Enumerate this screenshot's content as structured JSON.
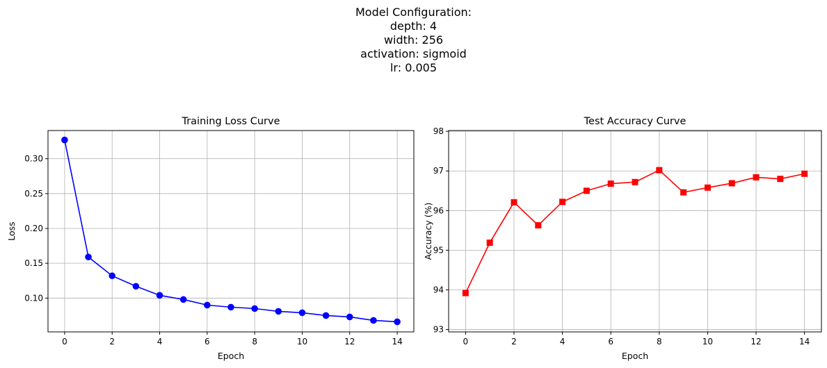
{
  "suptitle": {
    "lines": [
      "Model Configuration:",
      "depth: 4",
      "width: 256",
      "activation: sigmoid",
      "lr: 0.005"
    ]
  },
  "chart_data": [
    {
      "type": "line",
      "title": "Training Loss Curve",
      "xlabel": "Epoch",
      "ylabel": "Loss",
      "x": [
        0,
        1,
        2,
        3,
        4,
        5,
        6,
        7,
        8,
        9,
        10,
        11,
        12,
        13,
        14
      ],
      "xlim": [
        -0.7,
        14.7
      ],
      "ylim": [
        0.0515,
        0.3405
      ],
      "xticks": [
        0,
        2,
        4,
        6,
        8,
        10,
        12,
        14
      ],
      "yticks": [
        0.1,
        0.15,
        0.2,
        0.25,
        0.3
      ],
      "ytick_labels": [
        "0.10",
        "0.15",
        "0.20",
        "0.25",
        "0.30"
      ],
      "grid": true,
      "series": [
        {
          "values": [
            0.327,
            0.159,
            0.132,
            0.117,
            0.104,
            0.098,
            0.09,
            0.087,
            0.085,
            0.081,
            0.079,
            0.075,
            0.073,
            0.068,
            0.066
          ],
          "color": "#0000ff",
          "marker": "circle"
        }
      ]
    },
    {
      "type": "line",
      "title": "Test Accuracy Curve",
      "xlabel": "Epoch",
      "ylabel": "Accuracy (%)",
      "x": [
        0,
        1,
        2,
        3,
        4,
        5,
        6,
        7,
        8,
        9,
        10,
        11,
        12,
        13,
        14
      ],
      "xlim": [
        -0.7,
        14.7
      ],
      "ylim": [
        92.94,
        98.02
      ],
      "xticks": [
        0,
        2,
        4,
        6,
        8,
        10,
        12,
        14
      ],
      "yticks": [
        93,
        94,
        95,
        96,
        97,
        98
      ],
      "ytick_labels": [
        "93",
        "94",
        "95",
        "96",
        "97",
        "98"
      ],
      "grid": true,
      "series": [
        {
          "values": [
            93.92,
            95.19,
            96.21,
            95.63,
            96.22,
            96.5,
            96.68,
            96.72,
            97.02,
            96.46,
            96.58,
            96.69,
            96.84,
            96.8,
            96.93
          ],
          "color": "#ff0000",
          "marker": "square"
        }
      ]
    }
  ]
}
